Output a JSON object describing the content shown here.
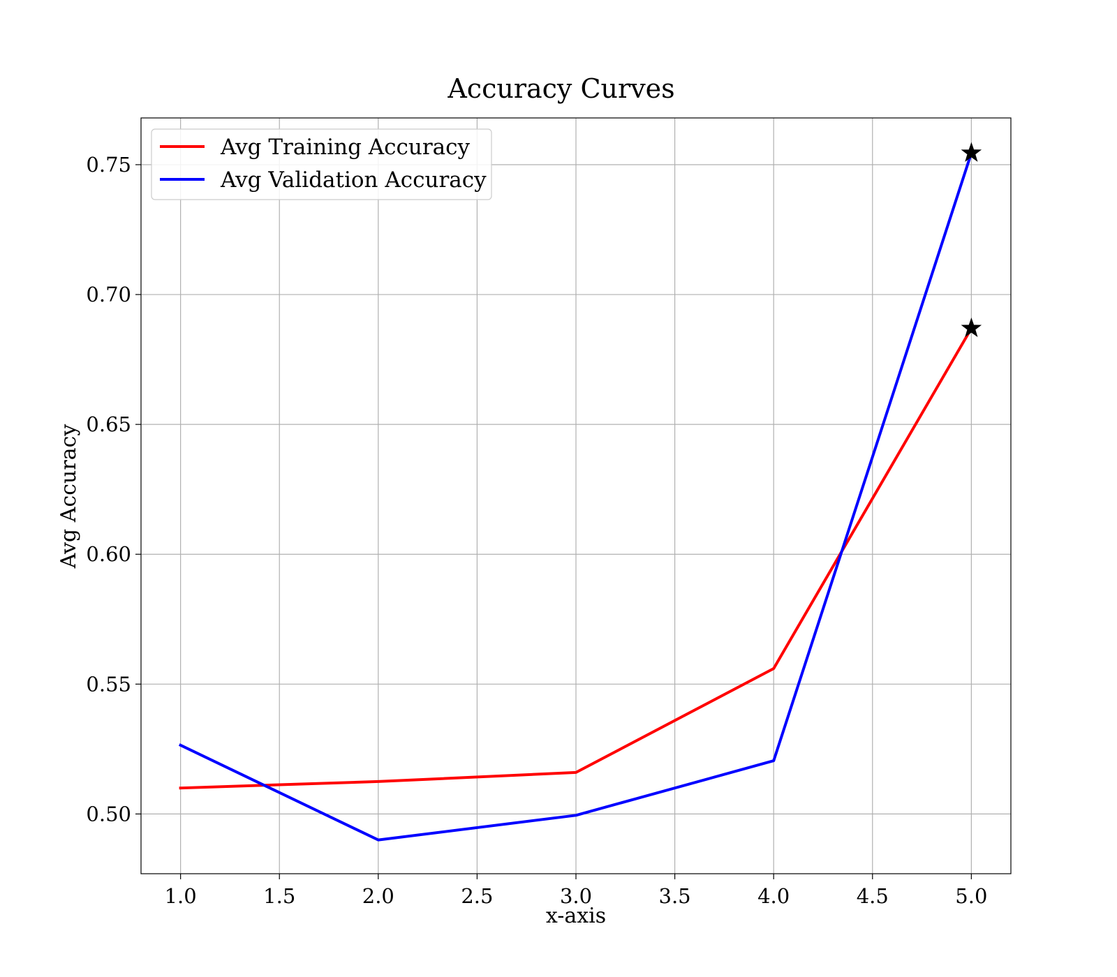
{
  "chart_data": {
    "type": "line",
    "title": "Accuracy Curves",
    "xlabel": "x-axis",
    "ylabel": "Avg Accuracy",
    "xlim": [
      0.8,
      5.2
    ],
    "ylim": [
      0.477,
      0.768
    ],
    "xticks": [
      1.0,
      1.5,
      2.0,
      2.5,
      3.0,
      3.5,
      4.0,
      4.5,
      5.0
    ],
    "xtick_labels": [
      "1.0",
      "1.5",
      "2.0",
      "2.5",
      "3.0",
      "3.5",
      "4.0",
      "4.5",
      "5.0"
    ],
    "yticks": [
      0.5,
      0.55,
      0.6,
      0.65,
      0.7,
      0.75
    ],
    "ytick_labels": [
      "0.50",
      "0.55",
      "0.60",
      "0.65",
      "0.70",
      "0.75"
    ],
    "grid": true,
    "legend_position": "top-left",
    "x": [
      1,
      2,
      3,
      4,
      5
    ],
    "series": [
      {
        "name": "Avg Training Accuracy",
        "color": "#ff0000",
        "values": [
          0.51,
          0.5125,
          0.516,
          0.556,
          0.687
        ]
      },
      {
        "name": "Avg Validation Accuracy",
        "color": "#0000ff",
        "values": [
          0.5265,
          0.49,
          0.4995,
          0.5205,
          0.7545
        ]
      }
    ],
    "markers": [
      {
        "series": "Avg Validation Accuracy",
        "x": 5,
        "y": 0.7545,
        "symbol": "star",
        "color": "#000000"
      },
      {
        "series": "Avg Training Accuracy",
        "x": 5,
        "y": 0.687,
        "symbol": "star",
        "color": "#000000"
      }
    ]
  }
}
